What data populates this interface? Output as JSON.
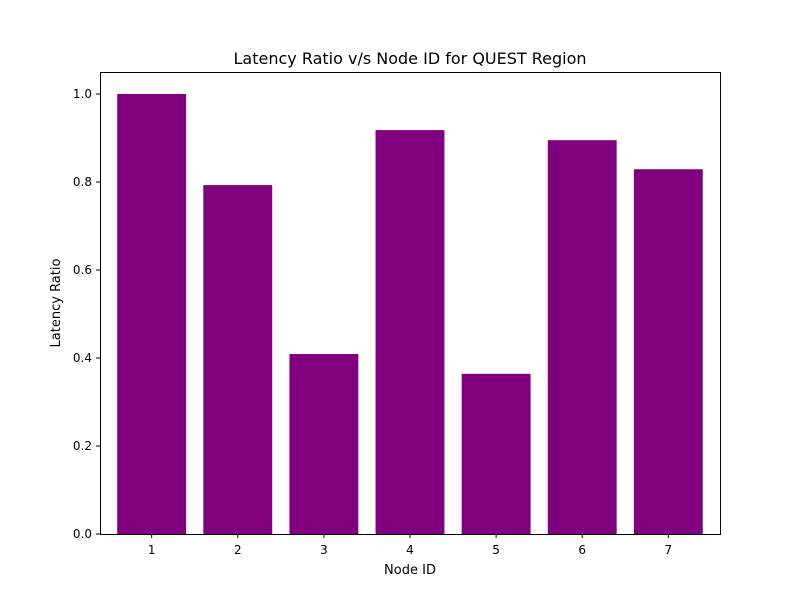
{
  "chart_data": {
    "type": "bar",
    "title": "Latency Ratio v/s Node ID for QUEST Region",
    "xlabel": "Node ID",
    "ylabel": "Latency Ratio",
    "categories": [
      "1",
      "2",
      "3",
      "4",
      "5",
      "6",
      "7"
    ],
    "values": [
      1.0,
      0.793,
      0.409,
      0.918,
      0.364,
      0.895,
      0.829
    ],
    "ylim": [
      0,
      1.05
    ],
    "yticks": [
      0.0,
      0.2,
      0.4,
      0.6,
      0.8,
      1.0
    ],
    "ytick_labels": [
      "0.0",
      "0.2",
      "0.4",
      "0.6",
      "0.8",
      "1.0"
    ],
    "bar_color": "#800080",
    "grid": false,
    "legend": "none"
  }
}
